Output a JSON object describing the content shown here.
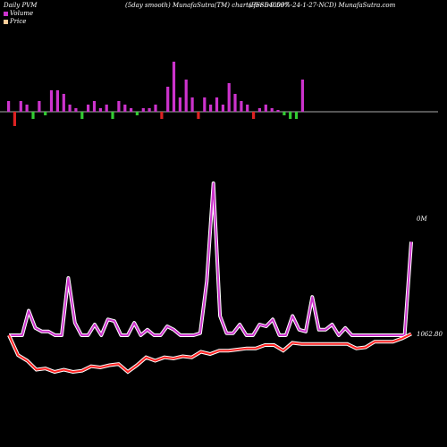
{
  "header": {
    "left": "Daily PVM",
    "center_left": "(5day smooth) MunafaSutra(TM) charts for 940097",
    "center_right": "(EFSL-9.50%-24-1-27-NCD) MunafaSutra.com"
  },
  "legend": [
    {
      "label": "Volume",
      "color": "#cc33cc"
    },
    {
      "label": "Price",
      "color": "#ffcc99"
    }
  ],
  "colors": {
    "volume_up": "#cc33cc",
    "volume_down_positive": "#dd2222",
    "volume_negative": "#33cc33",
    "price_line": "#ff2222",
    "volume_line": "#cc33cc",
    "line_glow": "#ffffff",
    "baseline": "#aaaaaa"
  },
  "chart_data": [
    {
      "type": "bar",
      "subtype": "volume-histogram",
      "values": [
        3,
        -4,
        3,
        2,
        -2,
        3,
        -1,
        6,
        6,
        5,
        2,
        1,
        -2,
        2,
        3,
        1,
        2,
        -2,
        3,
        2,
        1,
        -1,
        1,
        1,
        2,
        -2,
        7,
        14,
        4,
        9,
        4,
        -2,
        4,
        2,
        4,
        2,
        8,
        5,
        3,
        2,
        -2,
        1,
        2,
        1,
        0.5,
        -1,
        -2,
        -2,
        9
      ],
      "colors": [
        "p",
        "r",
        "p",
        "p",
        "g",
        "p",
        "g",
        "p",
        "p",
        "p",
        "p",
        "p",
        "g",
        "p",
        "p",
        "p",
        "p",
        "g",
        "p",
        "p",
        "p",
        "g",
        "p",
        "p",
        "p",
        "r",
        "p",
        "p",
        "p",
        "p",
        "p",
        "r",
        "p",
        "p",
        "p",
        "p",
        "p",
        "p",
        "p",
        "p",
        "r",
        "p",
        "p",
        "p",
        "p",
        "g",
        "g",
        "g",
        "p"
      ],
      "ylim": [
        -5,
        15
      ]
    },
    {
      "type": "line",
      "series": [
        {
          "role": "volume",
          "values": [
            1.5,
            1,
            1,
            22,
            12,
            12,
            7,
            7,
            5,
            21,
            18,
            1,
            1,
            5,
            1,
            1,
            8,
            8,
            1,
            6,
            2,
            1,
            6,
            4,
            1,
            1,
            2,
            12,
            13,
            9,
            10,
            4,
            3,
            1,
            10,
            19,
            1,
            8,
            1,
            0.5,
            4,
            1,
            0,
            1,
            7,
            5,
            8,
            3,
            1,
            11,
            2,
            1,
            1,
            2,
            1,
            5,
            2,
            5,
            1,
            42,
            10,
            20,
            22,
            19,
            17,
            1,
            3,
            1,
            2,
            1,
            0,
            2,
            9,
            8,
            4,
            1,
            2,
            4,
            1,
            29,
            12,
            7,
            7,
            22,
            35,
            43,
            9,
            4,
            3,
            6,
            1,
            1,
            3,
            18,
            5,
            3,
            1,
            10,
            5,
            3,
            2,
            1,
            1,
            0,
            2,
            2,
            3,
            0,
            2,
            1,
            1,
            0,
            0,
            0,
            0,
            1,
            100,
            100
          ]
        }
      ]
    }
  ],
  "price_line": {
    "values": [
      1062.8,
      1045,
      1040,
      1032,
      1033,
      1030,
      1032,
      1030,
      1031,
      1035,
      1034,
      1036,
      1037,
      1030,
      1036,
      1043,
      1040,
      1043,
      1042,
      1044,
      1043,
      1048,
      1046,
      1049,
      1049,
      1050,
      1051,
      1051,
      1054,
      1054,
      1049,
      1056,
      1055,
      1055,
      1055,
      1055,
      1055,
      1055,
      1051,
      1052,
      1057,
      1057,
      1057,
      1060,
      1064
    ]
  },
  "volume_line": {
    "values": [
      1062.8,
      1062.8,
      1077,
      1067,
      1065,
      1065,
      1062.8,
      1096,
      1070,
      1062.8,
      1062.8,
      1069,
      1062.8,
      1072,
      1071,
      1062.8,
      1062.8,
      1070,
      1062.8,
      1066,
      1062.8,
      1062.8,
      1068,
      1066,
      1062.8,
      1062.8,
      1062.8,
      1064,
      1094,
      1151,
      1074,
      1064,
      1064,
      1069,
      1062.8,
      1062.8,
      1069,
      1068,
      1072,
      1062.8,
      1062.8,
      1074,
      1066,
      1065,
      1085,
      1066,
      1066,
      1069,
      1062.8,
      1067,
      1062.8,
      1062.8,
      1062.8,
      1062.8,
      1062.8,
      1062.8,
      1062.8,
      1062.8,
      1062.8,
      1062.8,
      1062.8,
      1062.8,
      1062.8,
      1062.8,
      1062.8,
      1062.8,
      1062.8,
      1062.8,
      1062.8,
      1062.8,
      1062.8,
      1062.8,
      1062.8,
      1062.8,
      1062.8,
      1062.8,
      1062.8,
      1062.8,
      1062.8,
      1062.8,
      1062.8,
      1062.8,
      1062.8,
      1062.8,
      1062.8,
      1062.8,
      1062.8,
      1062.8,
      1062.8,
      1062.8,
      1062.8,
      1062.8,
      1062.8,
      1062.8,
      1062.8,
      1062.8,
      1062.8,
      1062.8,
      1062.8,
      1062.8,
      1062.8,
      1062.8,
      1062.8,
      1062.8,
      1062.8,
      1062.8,
      1062.8,
      1062.8,
      1062.8,
      1062.8,
      1062.8,
      1062.8,
      1062.8,
      1062.8,
      1062.8,
      1062.8,
      1062.8,
      1117
    ]
  },
  "labels": {
    "volume_end": "0M",
    "price_end": "1062.80"
  }
}
